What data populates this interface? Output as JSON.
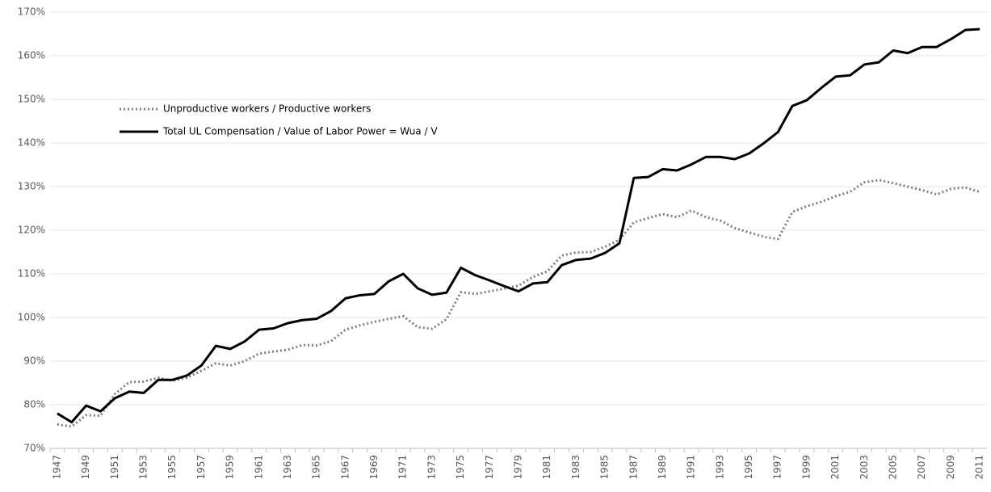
{
  "chart_data": {
    "type": "line",
    "categories": [
      "1947",
      null,
      "1949",
      null,
      "1951",
      null,
      "1953",
      null,
      "1955",
      null,
      "1957",
      null,
      "1959",
      null,
      "1961",
      null,
      "1963",
      null,
      "1965",
      null,
      "1967",
      null,
      "1969",
      null,
      "1971",
      null,
      "1973",
      null,
      "1975",
      null,
      "1977",
      null,
      "1979",
      null,
      "1981",
      null,
      "1983",
      null,
      "1985",
      null,
      "1987",
      null,
      "1989",
      null,
      "1991",
      null,
      "1993",
      null,
      "1995",
      null,
      "1997",
      null,
      "1999",
      null,
      "2001",
      null,
      "2003",
      null,
      "2005",
      null,
      "2007",
      null,
      "2009",
      null,
      "2011"
    ],
    "series": [
      {
        "name": "Unproductive workers / Productive workers",
        "color": "#7f7f7f",
        "line_style": "dotted",
        "values": [
          75.5,
          75,
          77.6,
          77.5,
          82.5,
          85.2,
          85.3,
          86.2,
          85.5,
          86.2,
          87.8,
          89.5,
          89,
          90,
          91.7,
          92.2,
          92.6,
          93.7,
          93.6,
          94.6,
          97.2,
          98.2,
          99,
          99.7,
          100.3,
          97.8,
          97.4,
          99.6,
          105.8,
          105.4,
          106,
          106.6,
          107.3,
          109.3,
          110.6,
          114.2,
          114.9,
          115,
          116.2,
          117.8,
          121.8,
          122.8,
          123.7,
          123,
          124.5,
          123,
          122.2,
          120.5,
          119.5,
          118.5,
          118,
          124.2,
          125.5,
          126.5,
          127.8,
          128.8,
          131,
          131.5,
          130.8,
          130,
          129.2,
          128.2,
          129.5,
          129.8,
          128.8
        ]
      },
      {
        "name": "Total UL Compensation / Value of Labor Power = Wua / V",
        "color": "#000000",
        "line_style": "solid",
        "values": [
          78,
          76,
          79.8,
          78.5,
          81.5,
          83,
          82.7,
          85.7,
          85.7,
          86.7,
          89,
          93.5,
          92.8,
          94.5,
          97.2,
          97.5,
          98.7,
          99.4,
          99.7,
          101.5,
          104.4,
          105.1,
          105.4,
          108.3,
          110,
          106.7,
          105.2,
          105.7,
          111.4,
          109.7,
          108.5,
          107.2,
          106,
          107.8,
          108.1,
          112,
          113.2,
          113.5,
          114.8,
          117,
          132,
          132.2,
          134,
          133.7,
          135.1,
          136.8,
          136.8,
          136.3,
          137.6,
          139.9,
          142.5,
          148.5,
          149.8,
          152.6,
          155.2,
          155.5,
          158,
          158.5,
          161.2,
          160.6,
          162,
          162,
          163.8,
          165.9,
          166.1
        ]
      }
    ],
    "ylim": [
      70,
      170
    ],
    "yticks": [
      {
        "value": 70,
        "label": "70%"
      },
      {
        "value": 80,
        "label": "80%"
      },
      {
        "value": 90,
        "label": "90%"
      },
      {
        "value": 100,
        "label": "100%"
      },
      {
        "value": 110,
        "label": "110%"
      },
      {
        "value": 120,
        "label": "120%"
      },
      {
        "value": 130,
        "label": "130%"
      },
      {
        "value": 140,
        "label": "140%"
      },
      {
        "value": 150,
        "label": "150%"
      },
      {
        "value": 160,
        "label": "160%"
      },
      {
        "value": 170,
        "label": "170%"
      }
    ],
    "grid": true,
    "legend": "upper left"
  }
}
